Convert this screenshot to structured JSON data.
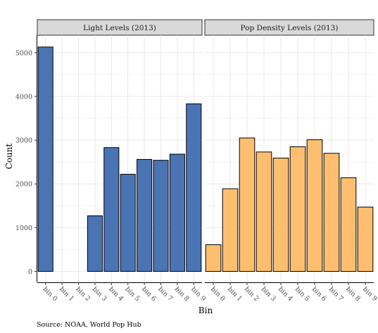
{
  "chart_data": {
    "type": "bar",
    "categories": [
      "bin 0",
      "bin 1",
      "bin 2",
      "bin 3",
      "bin 4",
      "bin 5",
      "bin 6",
      "bin 7",
      "bin 8",
      "bin 9"
    ],
    "facets": [
      {
        "title": "Light Levels (2013)",
        "color": "#4a74b4",
        "values": [
          5130,
          0,
          0,
          1270,
          2830,
          2220,
          2560,
          2540,
          2680,
          3830
        ]
      },
      {
        "title": "Pop Density Levels (2013)",
        "color": "#fdbf6f",
        "values": [
          610,
          1890,
          3050,
          2730,
          2590,
          2850,
          3010,
          2700,
          2140,
          1470
        ]
      }
    ],
    "xlabel": "Bin",
    "ylabel": "Count",
    "yticks": [
      0,
      1000,
      2000,
      3000,
      4000,
      5000
    ],
    "ylim": [
      -250,
      5400
    ],
    "grid": true,
    "caption": "Source: NOAA, World Pop Hub"
  }
}
